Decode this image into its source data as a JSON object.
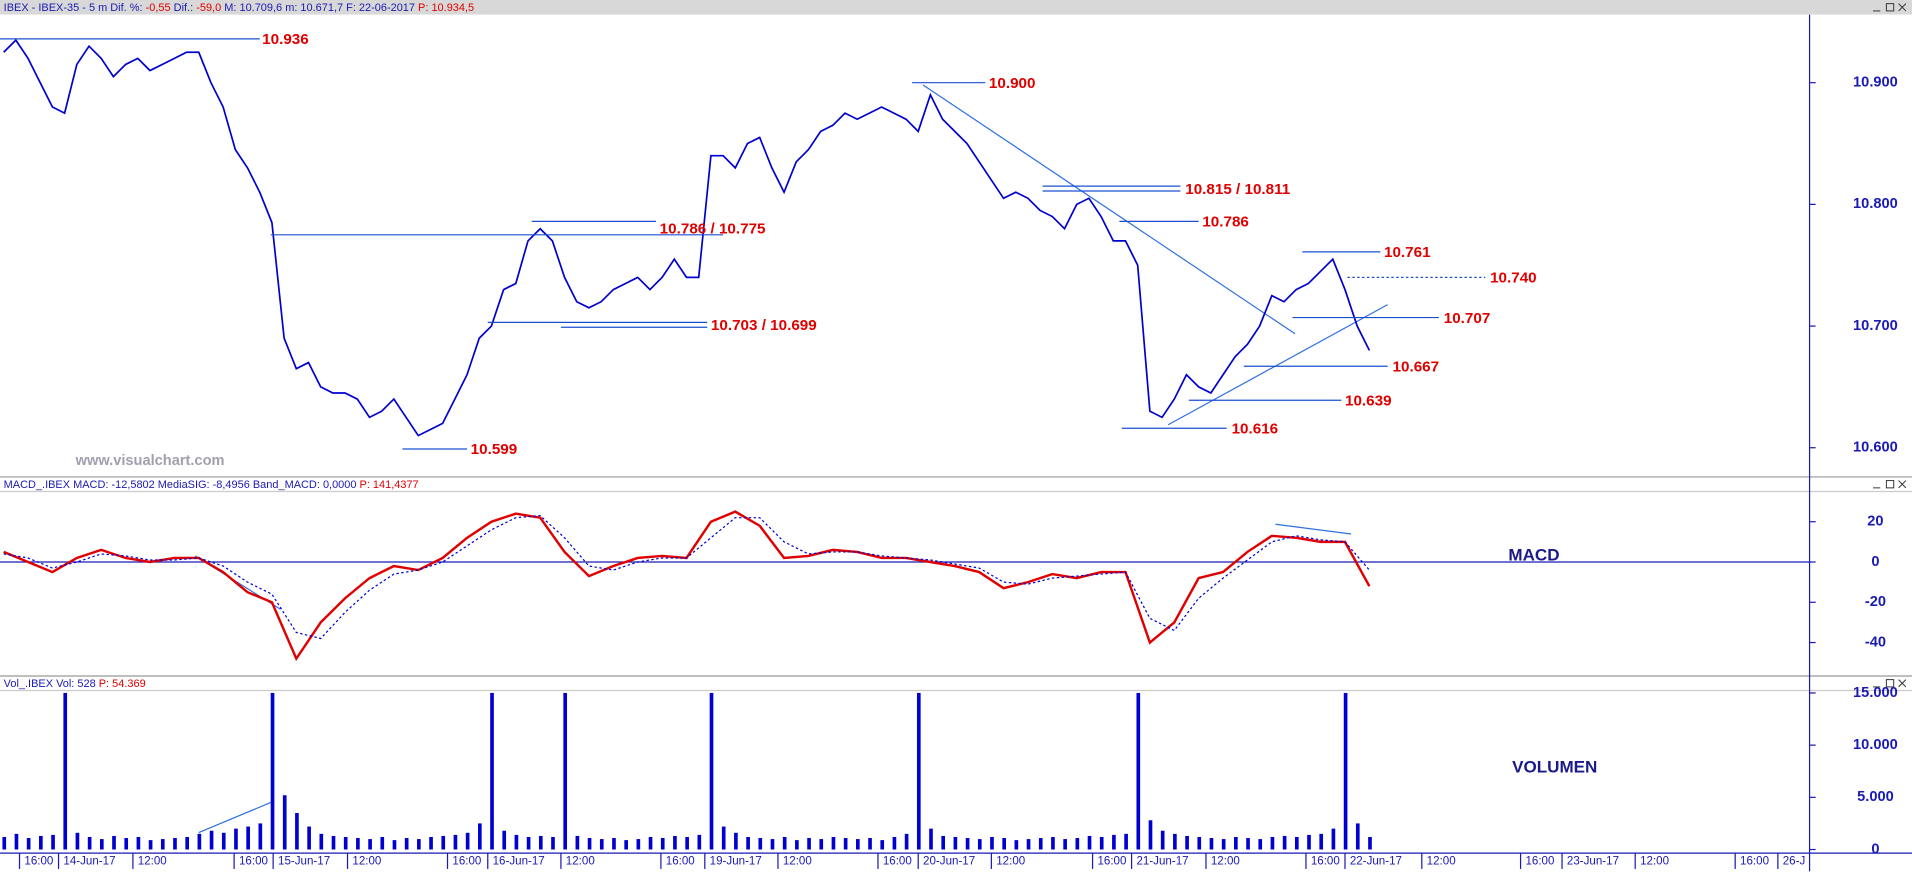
{
  "title_bar": {
    "pieces": [
      {
        "text": "IBEX - IBEX-35 -  5 m  Dif. %: ",
        "color": "#1a1ab4"
      },
      {
        "text": "-0,55",
        "color": "#e00000"
      },
      {
        "text": "  Dif.: ",
        "color": "#1a1ab4"
      },
      {
        "text": "-59,0",
        "color": "#e00000"
      },
      {
        "text": "  M: 10.709,6  m: 10.671,7  F: 22-06-2017  ",
        "color": "#1a1ab4"
      },
      {
        "text": "P: 10.934,5",
        "color": "#e00000"
      }
    ]
  },
  "price_panel": {
    "ylim": [
      10576,
      10956
    ],
    "yticks": [
      {
        "value": 10900,
        "label": "10.900"
      },
      {
        "value": 10800,
        "label": "10.800"
      },
      {
        "value": 10700,
        "label": "10.700"
      },
      {
        "value": 10600,
        "label": "10.600"
      }
    ],
    "color": "#0000d0",
    "values": [
      10925,
      10935,
      10920,
      10900,
      10880,
      10875,
      10915,
      10930,
      10920,
      10905,
      10915,
      10920,
      10910,
      10915,
      10920,
      10925,
      10925,
      10900,
      10880,
      10845,
      10830,
      10810,
      10785,
      10690,
      10665,
      10670,
      10650,
      10645,
      10645,
      10640,
      10625,
      10630,
      10640,
      10625,
      10610,
      10615,
      10620,
      10640,
      10660,
      10690,
      10700,
      10730,
      10735,
      10770,
      10780,
      10770,
      10740,
      10720,
      10715,
      10720,
      10730,
      10735,
      10740,
      10730,
      10740,
      10755,
      10740,
      10740,
      10840,
      10840,
      10830,
      10850,
      10855,
      10830,
      10810,
      10835,
      10845,
      10860,
      10865,
      10875,
      10870,
      10875,
      10880,
      10875,
      10870,
      10860,
      10890,
      10870,
      10860,
      10850,
      10835,
      10820,
      10805,
      10810,
      10805,
      10795,
      10790,
      10780,
      10800,
      10805,
      10790,
      10770,
      10770,
      10750,
      10630,
      10625,
      10640,
      10660,
      10650,
      10645,
      10660,
      10675,
      10685,
      10700,
      10725,
      10720,
      10730,
      10735,
      10745,
      10755,
      10730,
      10700,
      10680
    ],
    "annotations": [
      {
        "label": "10.936",
        "values": [
          10936
        ]
      },
      {
        "label": "10.786 / 10.775",
        "values": [
          10786,
          10775
        ]
      },
      {
        "label": "10.703 / 10.699",
        "values": [
          10703,
          10699
        ]
      },
      {
        "label": "10.599",
        "values": [
          10599
        ]
      },
      {
        "label": "10.900",
        "values": [
          10900
        ]
      },
      {
        "label": "10.815 / 10.811",
        "values": [
          10815,
          10811
        ]
      },
      {
        "label": "10.786",
        "values": [
          10786
        ]
      },
      {
        "label": "10.761",
        "values": [
          10761
        ]
      },
      {
        "label": "10.740",
        "values": [
          10740
        ]
      },
      {
        "label": "10.707",
        "values": [
          10707
        ]
      },
      {
        "label": "10.667",
        "values": [
          10667
        ]
      },
      {
        "label": "10.639",
        "values": [
          10639
        ]
      },
      {
        "label": "10.616",
        "values": [
          10616
        ]
      }
    ],
    "watermark": "www.visualchart.com"
  },
  "macd_panel": {
    "header": [
      {
        "text": "MACD_.IBEX MACD: -12,5802  MediaSIG: -8,4956  Band_MACD: 0,0000  ",
        "color": "#1a1ab4"
      },
      {
        "text": "P: 141,4377",
        "color": "#e00000"
      }
    ],
    "label": "MACD",
    "ylim": [
      -56,
      35
    ],
    "yticks": [
      20,
      0,
      -20,
      -40
    ],
    "series": [
      {
        "color": "#e00000",
        "values": [
          5,
          0,
          -5,
          2,
          6,
          2,
          0,
          2,
          2,
          -5,
          -15,
          -20,
          -48,
          -30,
          -18,
          -8,
          -2,
          -4,
          2,
          12,
          20,
          24,
          22,
          5,
          -7,
          -2,
          2,
          3,
          2,
          20,
          25,
          18,
          2,
          3,
          6,
          5,
          2,
          2,
          0,
          -2,
          -5,
          -13,
          -10,
          -6,
          -8,
          -5,
          -5,
          -40,
          -30,
          -8,
          -5,
          5,
          13,
          12,
          10,
          10,
          -12
        ]
      },
      {
        "color": "#0000d0",
        "values": [
          4,
          2,
          -3,
          0,
          4,
          3,
          1,
          1,
          2,
          -2,
          -10,
          -16,
          -35,
          -38,
          -25,
          -14,
          -6,
          -4,
          0,
          8,
          16,
          22,
          23,
          12,
          -2,
          -4,
          0,
          2,
          2,
          12,
          22,
          22,
          10,
          4,
          5,
          5,
          3,
          2,
          1,
          -1,
          -3,
          -10,
          -11,
          -8,
          -7,
          -6,
          -5,
          -28,
          -34,
          -18,
          -8,
          1,
          10,
          13,
          11,
          10,
          -4
        ]
      }
    ]
  },
  "volume_panel": {
    "header": [
      {
        "text": "Vol_.IBEX  Vol: 528  ",
        "color": "#1a1ab4"
      },
      {
        "text": "P: 54.369",
        "color": "#e00000"
      }
    ],
    "label": "VOLUMEN",
    "ylim": [
      -350,
      15230
    ],
    "yticks": [
      {
        "value": 15000,
        "label": "15.000"
      },
      {
        "value": 10000,
        "label": "10.000"
      },
      {
        "value": 5000,
        "label": "5.000"
      },
      0
    ],
    "color": "#0000d0",
    "values": [
      1200,
      1500,
      1100,
      1300,
      1400,
      15000,
      1600,
      1200,
      1000,
      1300,
      1100,
      1200,
      900,
      1000,
      1100,
      1200,
      1500,
      1800,
      1600,
      2000,
      2200,
      2500,
      15000,
      5200,
      3500,
      2200,
      1500,
      1300,
      1200,
      1100,
      1000,
      1200,
      900,
      1100,
      1000,
      1200,
      1300,
      1400,
      1600,
      2500,
      15000,
      1800,
      1400,
      1200,
      1300,
      1200,
      15000,
      1300,
      1100,
      1000,
      1100,
      900,
      1000,
      1200,
      1100,
      1300,
      1200,
      1400,
      15000,
      2200,
      1600,
      1200,
      1100,
      1000,
      1200,
      900,
      1100,
      1000,
      1200,
      1100,
      1000,
      1100,
      900,
      1200,
      1500,
      15000,
      2000,
      1300,
      1200,
      1100,
      1000,
      1200,
      1100,
      900,
      1000,
      1100,
      1200,
      1000,
      1100,
      1300,
      1200,
      1400,
      1500,
      15000,
      2800,
      1800,
      1500,
      1300,
      1200,
      1100,
      1000,
      1200,
      1100,
      1000,
      1200,
      1300,
      1200,
      1400,
      1500,
      2000,
      15000,
      2500,
      1200
    ]
  },
  "time_axis": {
    "labels": [
      "16:00",
      "14-Jun-17",
      "12:00",
      "16:00",
      "15-Jun-17",
      "12:00",
      "16:00",
      "16-Jun-17",
      "12:00",
      "16:00",
      "19-Jun-17",
      "12:00",
      "16:00",
      "20-Jun-17",
      "12:00",
      "16:00",
      "21-Jun-17",
      "12:00",
      "16:00",
      "22-Jun-17",
      "12:00",
      "16:00",
      "23-Jun-17",
      "12:00",
      "16:00",
      "26-J"
    ]
  }
}
